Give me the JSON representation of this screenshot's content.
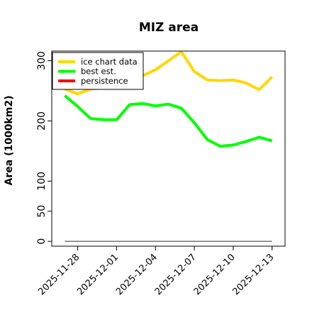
{
  "chart_data": {
    "type": "line",
    "title": "MIZ area",
    "xlabel": "",
    "ylabel": "Area (1000km2)",
    "x": [
      "2025-11-27",
      "2025-11-28",
      "2025-11-29",
      "2025-11-30",
      "2025-12-01",
      "2025-12-02",
      "2025-12-03",
      "2025-12-04",
      "2025-12-05",
      "2025-12-06",
      "2025-12-07",
      "2025-12-08",
      "2025-12-09",
      "2025-12-10",
      "2025-12-11",
      "2025-12-12",
      "2025-12-13"
    ],
    "x_ticks": [
      "2025-11-28",
      "2025-12-01",
      "2025-12-04",
      "2025-12-07",
      "2025-12-10",
      "2025-12-13"
    ],
    "xlim": [
      "2025-11-26",
      "2025-12-14"
    ],
    "y_ticks": [
      0,
      50,
      100,
      200,
      300
    ],
    "ylim": [
      -8,
      316
    ],
    "grid": false,
    "legend_position": "top-left",
    "series": [
      {
        "name": "ice chart data",
        "color": "#FFD700",
        "values": [
          253,
          245,
          253,
          255,
          258,
          265,
          275,
          285,
          300,
          315,
          282,
          268,
          267,
          268,
          263,
          252,
          273
        ]
      },
      {
        "name": "best est.",
        "color": "#00FF00",
        "values": [
          242,
          224,
          204,
          202,
          202,
          227,
          229,
          225,
          228,
          221,
          197,
          169,
          158,
          160,
          166,
          173,
          167
        ]
      },
      {
        "name": "persistence",
        "color": "#FF0000",
        "values": [
          null,
          null,
          null,
          null,
          null,
          null,
          null,
          null,
          null,
          null,
          null,
          null,
          null,
          null,
          null,
          null,
          null
        ]
      },
      {
        "name": "",
        "color": "#808080",
        "values": [
          0,
          0,
          0,
          0,
          0,
          0,
          0,
          0,
          0,
          0,
          0,
          0,
          0,
          0,
          0,
          0,
          0
        ]
      }
    ]
  }
}
